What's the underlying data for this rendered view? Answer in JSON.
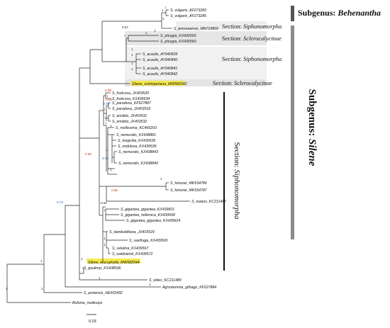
{
  "figure": {
    "subgenus_top": {
      "label": "Subgenus: ",
      "name": "Behenantha"
    },
    "subgenus_bottom": {
      "label": "Subgenus: ",
      "name": "Silene"
    },
    "section_boxes": [
      {
        "prefix": "Section: ",
        "name": "Siphonomorpha"
      },
      {
        "prefix": "Section: ",
        "name": "Sclerocalycinae"
      },
      {
        "prefix": "Section: ",
        "name": "Siphonomorpha"
      },
      {
        "prefix": "Section: ",
        "name": "Sclerocalycinae"
      }
    ],
    "section_vertical": {
      "prefix": "Section: ",
      "name": "Siphonomorpha"
    },
    "scale_bar": "0.03"
  },
  "tips": [
    "S_vulgaris_AF273283",
    "S_vulgaris_AF273285",
    "S_jenisseensis_MN723869",
    "S_phrygia_KX430559",
    "S_phrygia_KX430560",
    "S_acaulis_AY940839",
    "S_acaulis_AY940840",
    "S_acaulis_AY940841",
    "S_acaulis_AY940842",
    "Silene_schimperiana_MW582542",
    "S_fruticosa_JX403530",
    "S_fruticosa_KX439534",
    "S_paradoxa_KF527887",
    "S_paradoxa_JX403533",
    "S_aristida_JX403531",
    "S_aristida_JX403532",
    "S_mollissima_KC466293",
    "S_nemoralis_KX438881",
    "S_longicilia_KX439536",
    "S_nodulosa_KX439539",
    "S_nemoralis_KX438843",
    "S_nemoralis_KX438846",
    "S_fortunei_MK534786",
    "S_fortunei_MK534787",
    "S_nutans_KC211487",
    "S_gigantea_gigantea_KX439601",
    "S_gigantea_hellenica_KX439608",
    "S_gigantea_gigantea_KX439624",
    "S_damboldtiana_JX403529",
    "S_saxifraga_KX439565",
    "S_velutina_KX439567",
    "S_waldsteinii_KX439572",
    "Silene_leucophylla_MW582544",
    "S_goulimyi_KX438596",
    "S_otites_KC211480",
    "Agrostemma_githago_KF527884",
    "S_portensis_HE602492",
    "Bufonia_multiceps"
  ],
  "supports": [
    {
      "value": "1",
      "tone": "black"
    },
    {
      "value": "1",
      "tone": "red"
    },
    {
      "value": "1",
      "tone": "black"
    },
    {
      "value": "1",
      "tone": "black"
    },
    {
      "value": "0.67",
      "tone": "black"
    },
    {
      "value": "1",
      "tone": "red"
    },
    {
      "value": "1",
      "tone": "black"
    },
    {
      "value": "1",
      "tone": "black"
    },
    {
      "value": "1",
      "tone": "black"
    },
    {
      "value": "1",
      "tone": "black"
    },
    {
      "value": "1",
      "tone": "black"
    },
    {
      "value": "0.98",
      "tone": "red"
    },
    {
      "value": "1",
      "tone": "red"
    },
    {
      "value": "0.99",
      "tone": "red"
    },
    {
      "value": "0.79",
      "tone": "blue"
    },
    {
      "value": "1",
      "tone": "red"
    },
    {
      "value": "1",
      "tone": "red"
    },
    {
      "value": "1",
      "tone": "red"
    },
    {
      "value": "1",
      "tone": "black"
    },
    {
      "value": "0.79",
      "tone": "blue"
    },
    {
      "value": "1",
      "tone": "black"
    },
    {
      "value": "0.85",
      "tone": "red"
    },
    {
      "value": "1",
      "tone": "black"
    },
    {
      "value": "0.95",
      "tone": "red"
    },
    {
      "value": "0.92",
      "tone": "black"
    },
    {
      "value": "1",
      "tone": "red"
    },
    {
      "value": "0.72",
      "tone": "blue"
    },
    {
      "value": "1",
      "tone": "black"
    },
    {
      "value": "1",
      "tone": "black"
    },
    {
      "value": "1",
      "tone": "black"
    },
    {
      "value": "1",
      "tone": "black"
    },
    {
      "value": "1",
      "tone": "black"
    },
    {
      "value": "1",
      "tone": "black"
    },
    {
      "value": "1",
      "tone": "black"
    },
    {
      "value": "1",
      "tone": "black"
    }
  ],
  "colors": {
    "red": "#c0392b",
    "blue": "#2a5aa8",
    "black": "#222222",
    "highlight": "#f5e94a",
    "box": "#ececec",
    "bar_dark": "#555555"
  }
}
